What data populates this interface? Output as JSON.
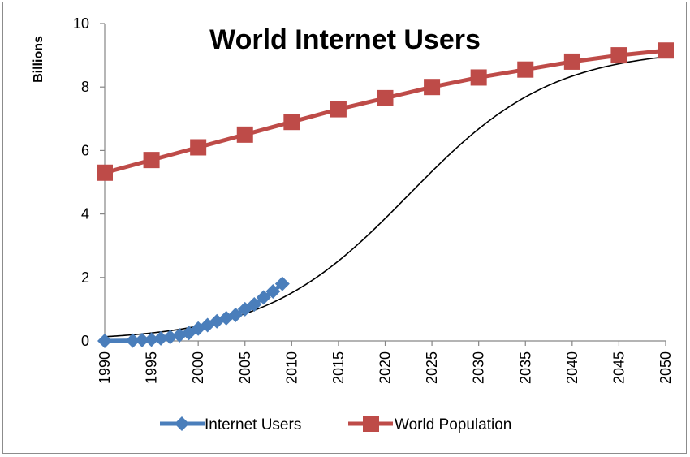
{
  "chart_data": {
    "type": "line",
    "title": "World Internet Users",
    "ylabel": "Billions",
    "xlabel": "",
    "xlim": [
      1990,
      2050
    ],
    "ylim": [
      0,
      10
    ],
    "x_ticks": [
      "1990",
      "1995",
      "2000",
      "2005",
      "2010",
      "2015",
      "2020",
      "2025",
      "2030",
      "2035",
      "2040",
      "2045",
      "2050"
    ],
    "y_ticks": [
      "0",
      "2",
      "4",
      "6",
      "8",
      "10"
    ],
    "grid": false,
    "legend_position": "bottom",
    "series": [
      {
        "name": "Internet Users",
        "color": "#4a7ebb",
        "marker": "diamond",
        "x": [
          1990,
          1993,
          1994,
          1995,
          1996,
          1997,
          1998,
          1999,
          2000,
          2001,
          2002,
          2003,
          2004,
          2005,
          2006,
          2007,
          2008,
          2009
        ],
        "y": [
          0.0,
          0.01,
          0.03,
          0.04,
          0.08,
          0.12,
          0.18,
          0.25,
          0.39,
          0.5,
          0.62,
          0.72,
          0.82,
          1.0,
          1.15,
          1.37,
          1.56,
          1.8
        ]
      },
      {
        "name": "World Population",
        "color": "#be4b48",
        "marker": "square",
        "x": [
          1990,
          1995,
          2000,
          2005,
          2010,
          2015,
          2020,
          2025,
          2030,
          2035,
          2040,
          2045,
          2050
        ],
        "y": [
          5.3,
          5.7,
          6.1,
          6.5,
          6.9,
          7.3,
          7.65,
          8.0,
          8.3,
          8.55,
          8.8,
          9.0,
          9.15
        ]
      }
    ],
    "trend_line": {
      "color": "#000000",
      "x_start": 1990,
      "x_end": 2050,
      "max": 9.2,
      "midpoint": 2022.5,
      "rate": 0.13
    }
  }
}
